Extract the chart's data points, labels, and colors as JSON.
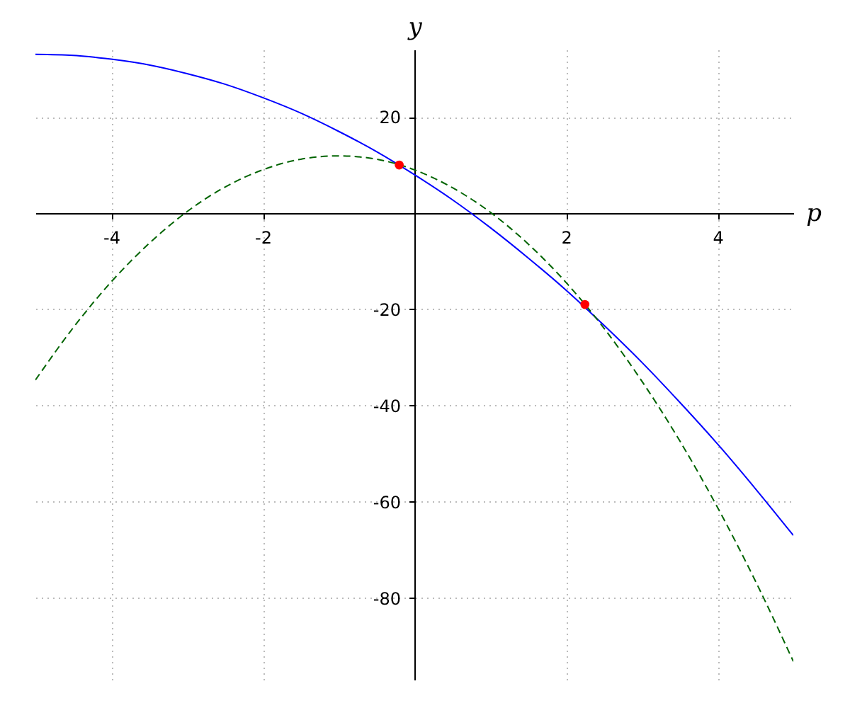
{
  "chart_data": {
    "type": "line",
    "xlabel": "p",
    "ylabel": "y",
    "xlim": [
      -5,
      5
    ],
    "ylim": [
      -97,
      34
    ],
    "xticks": [
      -4,
      -2,
      2,
      4
    ],
    "yticks": [
      -80,
      -60,
      -40,
      -20,
      20
    ],
    "grid": true,
    "x": [
      -5,
      -4.5,
      -4,
      -3.5,
      -3,
      -2.5,
      -2,
      -1.5,
      -1,
      -0.5,
      0,
      0.5,
      1,
      1.5,
      2,
      2.5,
      3,
      3.5,
      4,
      4.5,
      5
    ],
    "series": [
      {
        "color": "#0000ff",
        "line_style": "solid",
        "values": [
          33,
          32.8,
          32,
          30.8,
          29,
          26.8,
          24,
          20.8,
          17,
          12.8,
          8,
          2.8,
          -3,
          -9.3,
          -16,
          -23.3,
          -31,
          -39.3,
          -48,
          -57.3,
          -67
        ]
      },
      {
        "color": "#006400",
        "line_style": "dashed",
        "values": [
          -34.7,
          -23.8,
          -14.3,
          -6.3,
          0.3,
          5.4,
          9,
          11.2,
          11.9,
          11.2,
          9,
          5.3,
          0.2,
          -6.4,
          -14.4,
          -23.9,
          -34.9,
          -47.3,
          -61.2,
          -76.5,
          -93.2
        ]
      },
      {
        "type": "scatter",
        "color": "#ff0000",
        "marker": "circle",
        "x": [
          -0.2,
          2.25
        ],
        "values": [
          10,
          -19
        ]
      }
    ]
  }
}
